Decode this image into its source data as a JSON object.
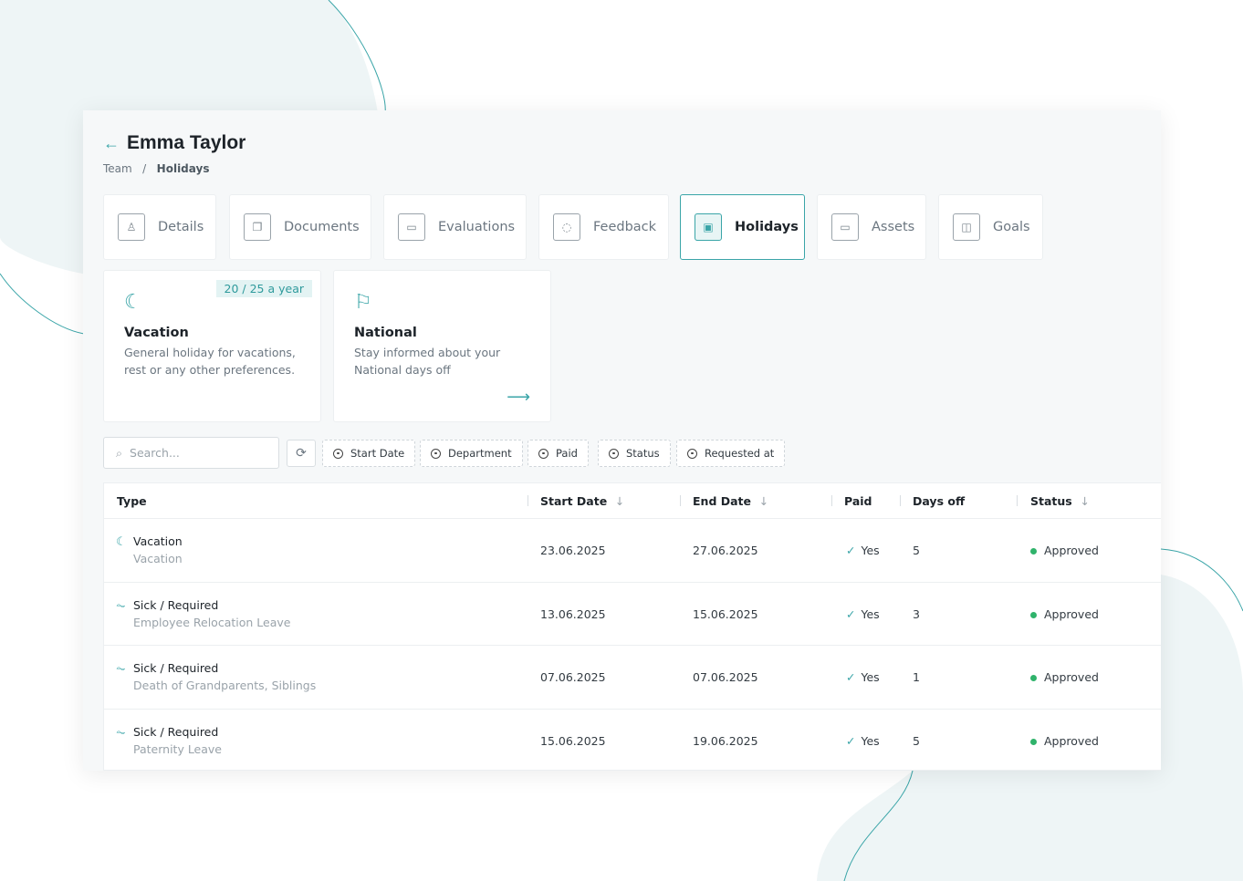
{
  "header": {
    "back_icon": "arrow-left-icon",
    "title": "Emma Taylor",
    "breadcrumb": [
      "Team",
      "Holidays"
    ],
    "breadcrumb_sep": "/"
  },
  "tabs": [
    {
      "label": "Details",
      "icon": "user-icon",
      "glyph": "♙"
    },
    {
      "label": "Documents",
      "icon": "documents-icon",
      "glyph": "❐"
    },
    {
      "label": "Evaluations",
      "icon": "presentation-icon",
      "glyph": "▭"
    },
    {
      "label": "Feedback",
      "icon": "chat-icon",
      "glyph": "◌"
    },
    {
      "label": "Holidays",
      "icon": "calendar-icon",
      "glyph": "▣",
      "active": true
    },
    {
      "label": "Assets",
      "icon": "monitor-icon",
      "glyph": "▭"
    },
    {
      "label": "Goals",
      "icon": "chart-icon",
      "glyph": "◫"
    }
  ],
  "cards": [
    {
      "title": "Vacation",
      "desc": "General holiday for vacations, rest or any other preferences.",
      "badge": "20 / 25 a year",
      "icon": "moon-icon"
    },
    {
      "title": "National",
      "desc": "Stay informed about your National days off",
      "icon": "flag-icon",
      "arrow": "arrow-right-icon"
    }
  ],
  "filters": {
    "search_placeholder": "Search...",
    "chips": [
      "Start Date",
      "Department",
      "Paid",
      "Status",
      "Requested at"
    ]
  },
  "table": {
    "columns": [
      "Type",
      "Start Date",
      "End Date",
      "Paid",
      "Days off",
      "Status"
    ],
    "sort_arrow": "↓",
    "rows": [
      {
        "type": "Vacation",
        "subtype": "Vacation",
        "icon": "moon-icon",
        "start": "23.06.2025",
        "end": "27.06.2025",
        "paid": "Yes",
        "days": "5",
        "status": "Approved"
      },
      {
        "type": "Sick / Required",
        "subtype": "Employee Relocation Leave",
        "icon": "pulse-icon",
        "start": "13.06.2025",
        "end": "15.06.2025",
        "paid": "Yes",
        "days": "3",
        "status": "Approved"
      },
      {
        "type": "Sick / Required",
        "subtype": "Death of Grandparents, Siblings",
        "icon": "pulse-icon",
        "start": "07.06.2025",
        "end": "07.06.2025",
        "paid": "Yes",
        "days": "1",
        "status": "Approved"
      },
      {
        "type": "Sick / Required",
        "subtype": "Paternity Leave",
        "icon": "pulse-icon",
        "start": "15.06.2025",
        "end": "19.06.2025",
        "paid": "Yes",
        "days": "5",
        "status": "Approved"
      }
    ]
  },
  "colors": {
    "accent": "#3aa5a8",
    "approved": "#2fb36b"
  }
}
